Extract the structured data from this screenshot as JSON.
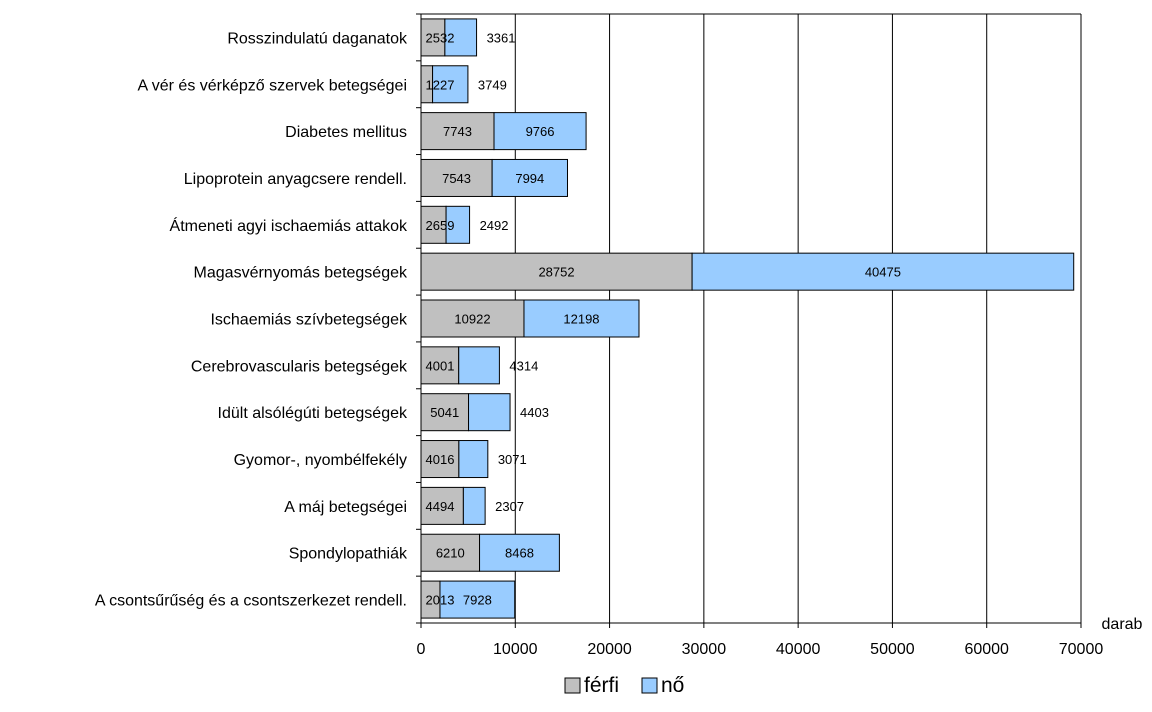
{
  "chart_data": {
    "type": "bar",
    "orientation": "horizontal",
    "stacked": true,
    "categories": [
      "Rosszindulatú daganatok",
      "A vér és vérképző szervek betegségei",
      "Diabetes mellitus",
      "Lipoprotein anyagcsere rendell.",
      "Átmeneti agyi ischaemiás attakok",
      "Magasvérnyomás betegségek",
      "Ischaemiás szívbetegségek",
      "Cerebrovascularis betegségek",
      "Idült alsólégúti betegségek",
      "Gyomor-, nyombélfekély",
      "A máj betegségei",
      "Spondylopathiák",
      "A csontsűrűség és a csontszerkezet rendell."
    ],
    "series": [
      {
        "name": "férfi",
        "color": "#c0c0c0",
        "values": [
          2532,
          1227,
          7743,
          7543,
          2659,
          28752,
          10922,
          4001,
          5041,
          4016,
          4494,
          6210,
          2013
        ]
      },
      {
        "name": "nő",
        "color": "#99ccff",
        "values": [
          3361,
          3749,
          9766,
          7994,
          2492,
          40475,
          12198,
          4314,
          4403,
          3071,
          2307,
          8468,
          7928
        ]
      }
    ],
    "xlabel": "darab",
    "ylabel": "",
    "xlim": [
      0,
      70000
    ],
    "xticks": [
      0,
      10000,
      20000,
      30000,
      40000,
      50000,
      60000,
      70000
    ],
    "tick_labels": [
      "0",
      "10000",
      "20000",
      "30000",
      "40000",
      "50000",
      "60000",
      "70000"
    ],
    "grid": "vertical",
    "legend": "bottom"
  }
}
